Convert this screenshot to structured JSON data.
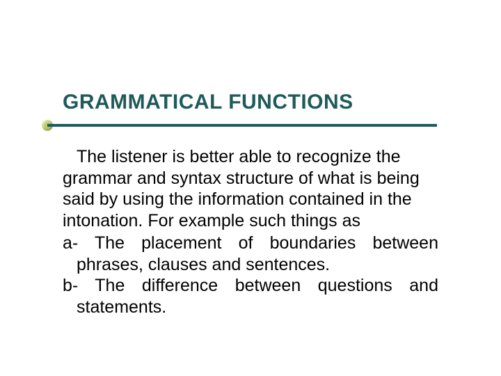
{
  "slide": {
    "title": "GRAMMATICAL FUNCTIONS",
    "title_color": "#1f5a5a",
    "title_fontsize": 30,
    "rule_color": "#1f5a5a",
    "bullet_color": "#b8cc66",
    "body_fontsize": 25,
    "body_color": "#000000",
    "paragraph": "The listener is better able to recognize the grammar and syntax structure of what is being said by using the information contained in the intonation. For example such things as",
    "item_a": "a- The placement of boundaries between phrases, clauses and sentences.",
    "item_b": "b- The difference between questions and statements."
  }
}
